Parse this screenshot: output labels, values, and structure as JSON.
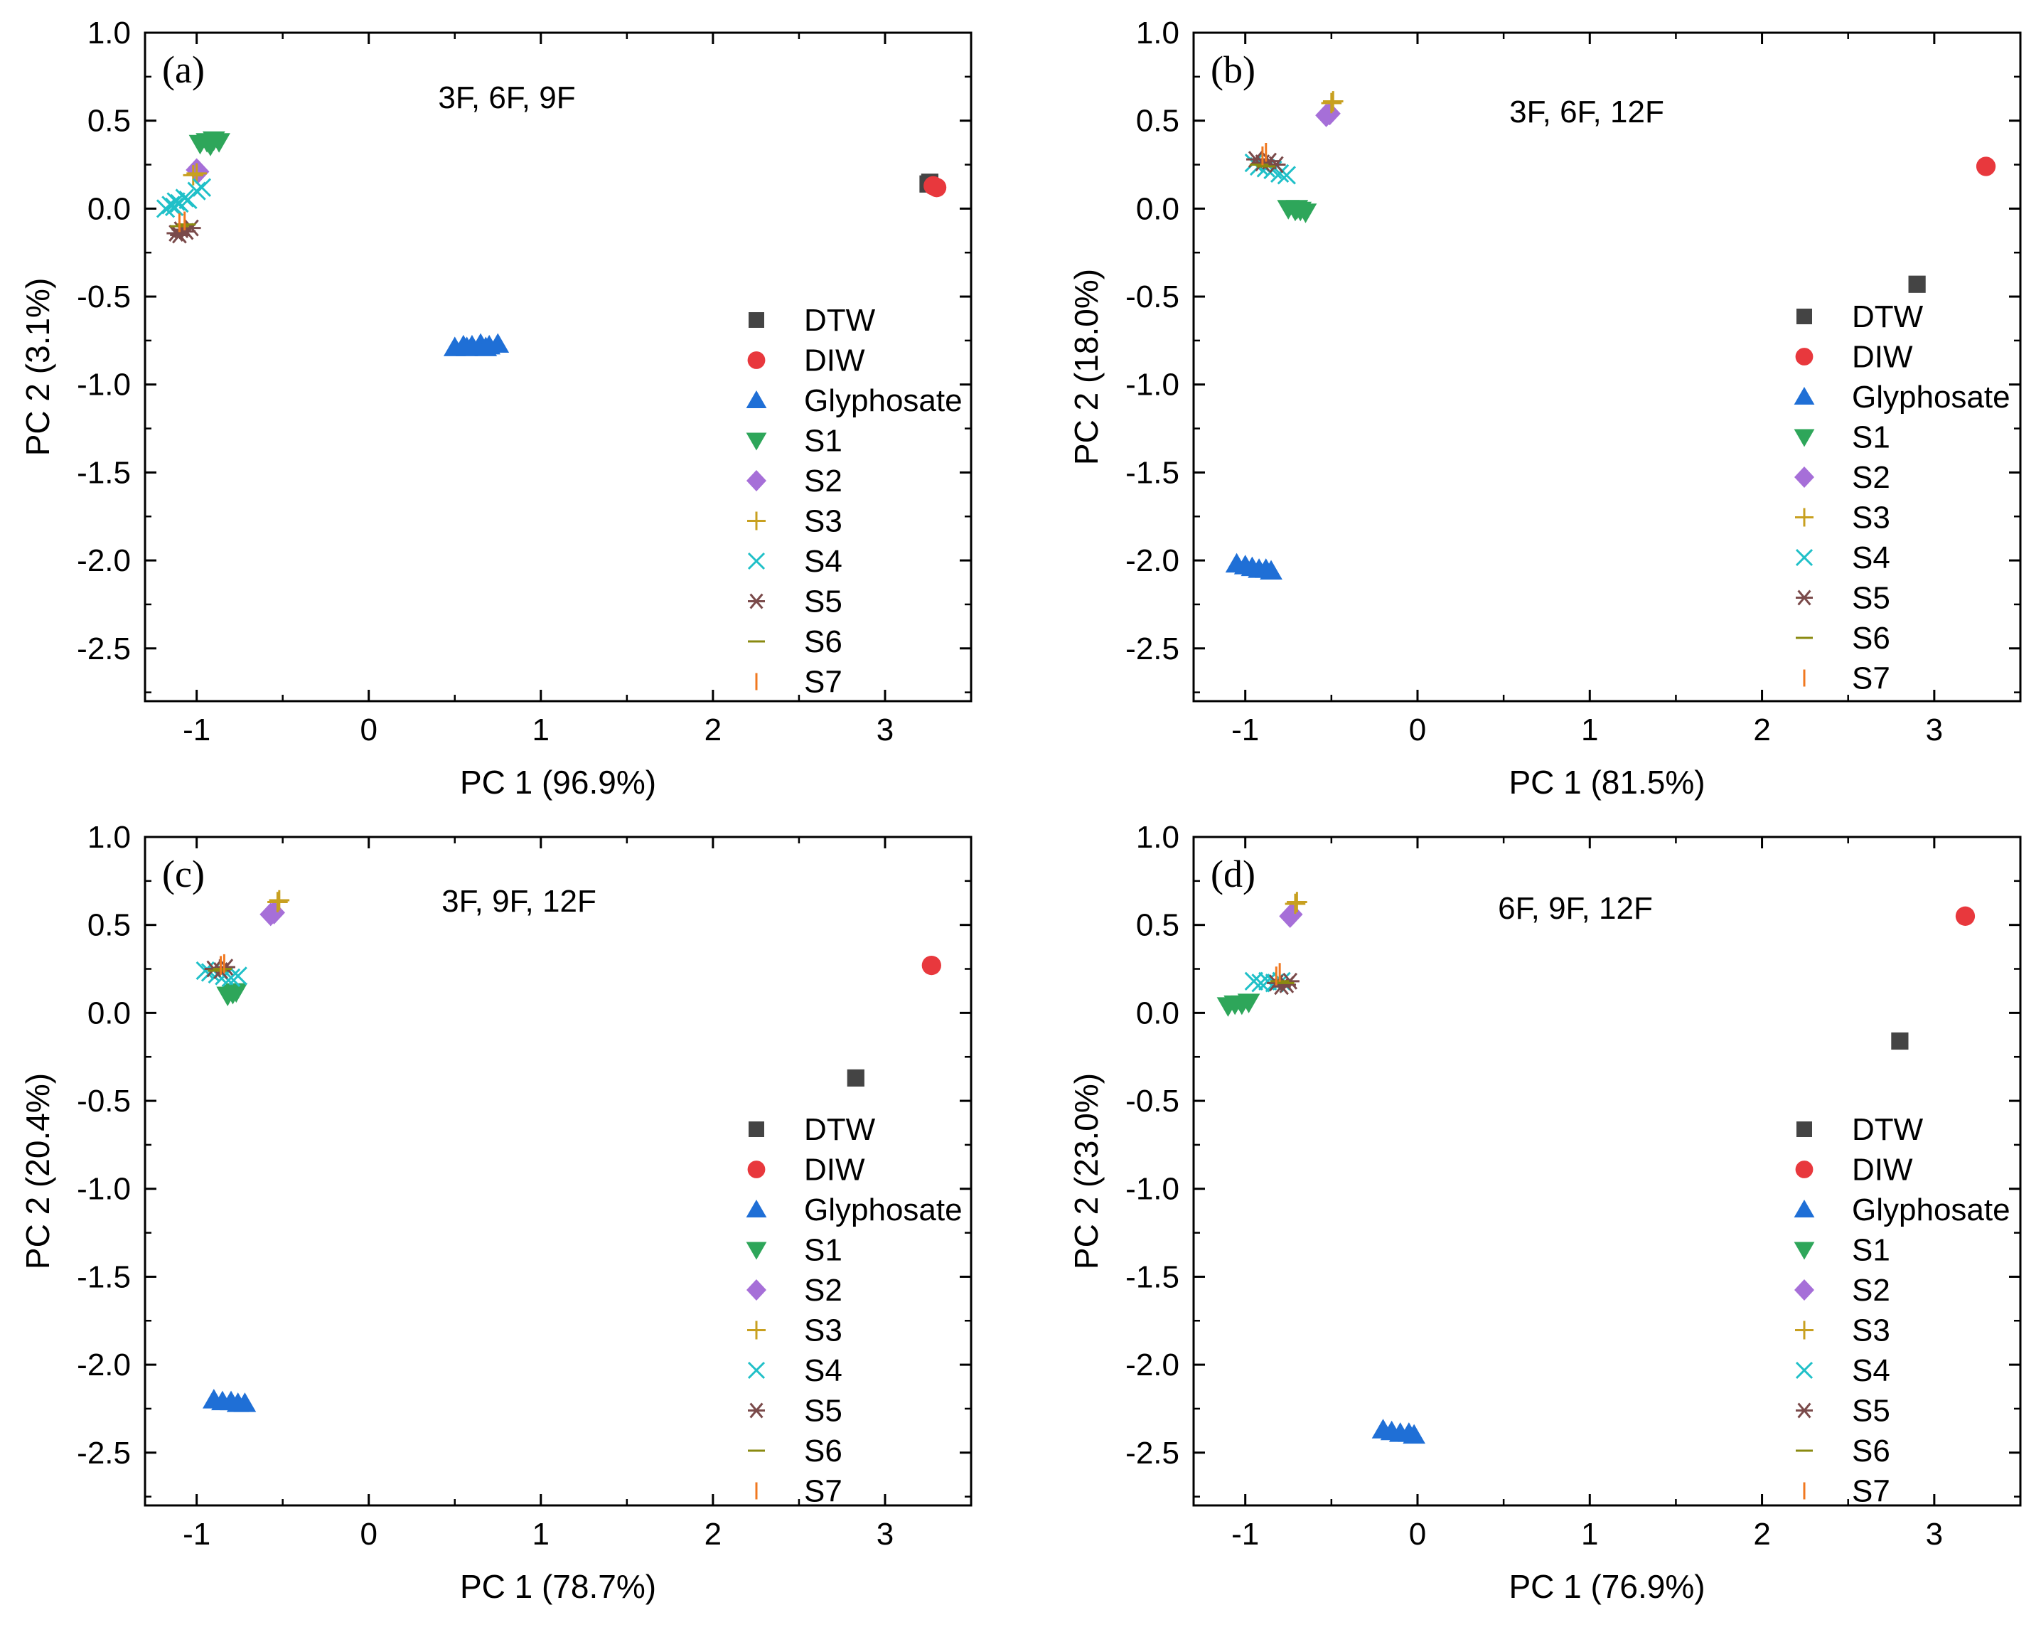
{
  "chart_data": [
    {
      "type": "scatter",
      "panel_label": "(a)",
      "annotation": "3F, 6F, 9F",
      "xlabel": "PC 1 (96.9%)",
      "ylabel": "PC 2 (3.1%)",
      "xlim": [
        -1.3,
        3.5
      ],
      "ylim": [
        -2.8,
        1.0
      ],
      "xticks": [
        -1,
        0,
        1,
        2,
        3
      ],
      "yticks": [
        1.0,
        0.5,
        0.0,
        -0.5,
        -1.0,
        -1.5,
        -2.0,
        -2.5
      ],
      "xtick_labels": [
        "-1",
        "0",
        "1",
        "2",
        "3"
      ],
      "ytick_labels": [
        "1.0",
        "0.5",
        "0.0",
        "-0.5",
        "-1.0",
        "-1.5",
        "-2.0",
        "-2.5"
      ],
      "legend_position": "lower-right",
      "series": [
        {
          "name": "DTW",
          "marker": "square",
          "color": "#444444",
          "points": [
            [
              3.25,
              0.14
            ],
            [
              3.26,
              0.15
            ]
          ]
        },
        {
          "name": "DIW",
          "marker": "circle",
          "color": "#e8383d",
          "points": [
            [
              3.28,
              0.13
            ],
            [
              3.3,
              0.12
            ]
          ]
        },
        {
          "name": "Glyphosate",
          "marker": "triangle-up",
          "color": "#1f6fd6",
          "points": [
            [
              0.5,
              -0.79
            ],
            [
              0.55,
              -0.78
            ],
            [
              0.6,
              -0.78
            ],
            [
              0.65,
              -0.77
            ],
            [
              0.7,
              -0.78
            ],
            [
              0.75,
              -0.77
            ],
            [
              0.57,
              -0.79
            ],
            [
              0.68,
              -0.79
            ]
          ]
        },
        {
          "name": "S1",
          "marker": "triangle-down",
          "color": "#2ea65a",
          "points": [
            [
              -0.98,
              0.37
            ],
            [
              -0.94,
              0.38
            ],
            [
              -0.9,
              0.39
            ],
            [
              -0.87,
              0.38
            ],
            [
              -0.92,
              0.36
            ]
          ]
        },
        {
          "name": "S2",
          "marker": "diamond",
          "color": "#a66fd8",
          "points": [
            [
              -1.0,
              0.22
            ],
            [
              -0.99,
              0.21
            ]
          ]
        },
        {
          "name": "S3",
          "marker": "plus",
          "color": "#c8a020",
          "points": [
            [
              -1.02,
              0.19
            ],
            [
              -1.0,
              0.2
            ]
          ]
        },
        {
          "name": "S4",
          "marker": "x",
          "color": "#20c0c8",
          "points": [
            [
              -1.18,
              0.0
            ],
            [
              -1.15,
              0.02
            ],
            [
              -1.12,
              0.04
            ],
            [
              -1.1,
              0.03
            ],
            [
              -1.07,
              0.06
            ],
            [
              -1.05,
              0.05
            ],
            [
              -1.0,
              0.1
            ],
            [
              -0.97,
              0.12
            ],
            [
              -1.13,
              0.01
            ]
          ]
        },
        {
          "name": "S5",
          "marker": "asterisk",
          "color": "#7a4a4a",
          "points": [
            [
              -1.12,
              -0.14
            ],
            [
              -1.09,
              -0.12
            ],
            [
              -1.06,
              -0.13
            ],
            [
              -1.03,
              -0.11
            ],
            [
              -1.1,
              -0.15
            ]
          ]
        },
        {
          "name": "S6",
          "marker": "dash",
          "color": "#8a8a10",
          "points": [
            [
              -1.1,
              -0.1
            ],
            [
              -1.06,
              -0.09
            ]
          ]
        },
        {
          "name": "S7",
          "marker": "bar",
          "color": "#f07820",
          "points": [
            [
              -1.1,
              -0.08
            ],
            [
              -1.07,
              -0.07
            ]
          ]
        }
      ]
    },
    {
      "type": "scatter",
      "panel_label": "(b)",
      "annotation": "3F, 6F, 12F",
      "xlabel": "PC 1 (81.5%)",
      "ylabel": "PC 2 (18.0%)",
      "xlim": [
        -1.3,
        3.5
      ],
      "ylim": [
        -2.8,
        1.0
      ],
      "xticks": [
        -1,
        0,
        1,
        2,
        3
      ],
      "yticks": [
        1.0,
        0.5,
        0.0,
        -0.5,
        -1.0,
        -1.5,
        -2.0,
        -2.5
      ],
      "xtick_labels": [
        "-1",
        "0",
        "1",
        "2",
        "3"
      ],
      "ytick_labels": [
        "1.0",
        "0.5",
        "0.0",
        "-0.5",
        "-1.0",
        "-1.5",
        "-2.0",
        "-2.5"
      ],
      "legend_position": "lower-right",
      "series": [
        {
          "name": "DTW",
          "marker": "square",
          "color": "#444444",
          "points": [
            [
              2.9,
              -0.43
            ]
          ]
        },
        {
          "name": "DIW",
          "marker": "circle",
          "color": "#e8383d",
          "points": [
            [
              3.3,
              0.24
            ]
          ]
        },
        {
          "name": "Glyphosate",
          "marker": "triangle-up",
          "color": "#1f6fd6",
          "points": [
            [
              -1.05,
              -2.02
            ],
            [
              -1.0,
              -2.03
            ],
            [
              -0.96,
              -2.04
            ],
            [
              -0.92,
              -2.05
            ],
            [
              -0.88,
              -2.05
            ],
            [
              -0.85,
              -2.06
            ]
          ]
        },
        {
          "name": "S1",
          "marker": "triangle-down",
          "color": "#2ea65a",
          "points": [
            [
              -0.75,
              0.0
            ],
            [
              -0.71,
              -0.01
            ],
            [
              -0.68,
              -0.01
            ],
            [
              -0.65,
              -0.02
            ],
            [
              -0.7,
              0.0
            ]
          ]
        },
        {
          "name": "S2",
          "marker": "diamond",
          "color": "#a66fd8",
          "points": [
            [
              -0.53,
              0.53
            ],
            [
              -0.51,
              0.54
            ]
          ]
        },
        {
          "name": "S3",
          "marker": "plus",
          "color": "#c8a020",
          "points": [
            [
              -0.5,
              0.6
            ],
            [
              -0.49,
              0.61
            ]
          ]
        },
        {
          "name": "S4",
          "marker": "x",
          "color": "#20c0c8",
          "points": [
            [
              -0.95,
              0.26
            ],
            [
              -0.92,
              0.24
            ],
            [
              -0.88,
              0.23
            ],
            [
              -0.84,
              0.22
            ],
            [
              -0.8,
              0.2
            ],
            [
              -0.76,
              0.19
            ]
          ]
        },
        {
          "name": "S5",
          "marker": "asterisk",
          "color": "#7a4a4a",
          "points": [
            [
              -0.94,
              0.28
            ],
            [
              -0.9,
              0.26
            ],
            [
              -0.86,
              0.27
            ],
            [
              -0.82,
              0.25
            ]
          ]
        },
        {
          "name": "S6",
          "marker": "dash",
          "color": "#8a8a10",
          "points": [
            [
              -0.92,
              0.25
            ],
            [
              -0.88,
              0.24
            ]
          ]
        },
        {
          "name": "S7",
          "marker": "bar",
          "color": "#f07820",
          "points": [
            [
              -0.9,
              0.3
            ],
            [
              -0.88,
              0.32
            ]
          ]
        }
      ]
    },
    {
      "type": "scatter",
      "panel_label": "(c)",
      "annotation": "3F, 9F, 12F",
      "xlabel": "PC 1 (78.7%)",
      "ylabel": "PC 2 (20.4%)",
      "xlim": [
        -1.3,
        3.5
      ],
      "ylim": [
        -2.8,
        1.0
      ],
      "xticks": [
        -1,
        0,
        1,
        2,
        3
      ],
      "yticks": [
        1.0,
        0.5,
        0.0,
        -0.5,
        -1.0,
        -1.5,
        -2.0,
        -2.5
      ],
      "xtick_labels": [
        "-1",
        "0",
        "1",
        "2",
        "3"
      ],
      "ytick_labels": [
        "1.0",
        "0.5",
        "0.0",
        "-0.5",
        "-1.0",
        "-1.5",
        "-2.0",
        "-2.5"
      ],
      "legend_position": "lower-right",
      "series": [
        {
          "name": "DTW",
          "marker": "square",
          "color": "#444444",
          "points": [
            [
              2.83,
              -0.37
            ]
          ]
        },
        {
          "name": "DIW",
          "marker": "circle",
          "color": "#e8383d",
          "points": [
            [
              3.27,
              0.27
            ]
          ]
        },
        {
          "name": "Glyphosate",
          "marker": "triangle-up",
          "color": "#1f6fd6",
          "points": [
            [
              -0.9,
              -2.2
            ],
            [
              -0.85,
              -2.21
            ],
            [
              -0.8,
              -2.21
            ],
            [
              -0.76,
              -2.22
            ],
            [
              -0.72,
              -2.22
            ]
          ]
        },
        {
          "name": "S1",
          "marker": "triangle-down",
          "color": "#2ea65a",
          "points": [
            [
              -0.82,
              0.1
            ],
            [
              -0.79,
              0.11
            ],
            [
              -0.77,
              0.12
            ]
          ]
        },
        {
          "name": "S2",
          "marker": "diamond",
          "color": "#a66fd8",
          "points": [
            [
              -0.57,
              0.56
            ],
            [
              -0.55,
              0.57
            ]
          ]
        },
        {
          "name": "S3",
          "marker": "plus",
          "color": "#c8a020",
          "points": [
            [
              -0.53,
              0.63
            ],
            [
              -0.52,
              0.64
            ]
          ]
        },
        {
          "name": "S4",
          "marker": "x",
          "color": "#20c0c8",
          "points": [
            [
              -0.95,
              0.24
            ],
            [
              -0.92,
              0.23
            ],
            [
              -0.88,
              0.22
            ],
            [
              -0.84,
              0.21
            ],
            [
              -0.8,
              0.2
            ],
            [
              -0.76,
              0.21
            ]
          ]
        },
        {
          "name": "S5",
          "marker": "asterisk",
          "color": "#7a4a4a",
          "points": [
            [
              -0.9,
              0.25
            ],
            [
              -0.86,
              0.24
            ],
            [
              -0.83,
              0.26
            ]
          ]
        },
        {
          "name": "S6",
          "marker": "dash",
          "color": "#8a8a10",
          "points": [
            [
              -0.88,
              0.24
            ],
            [
              -0.85,
              0.25
            ]
          ]
        },
        {
          "name": "S7",
          "marker": "bar",
          "color": "#f07820",
          "points": [
            [
              -0.86,
              0.27
            ],
            [
              -0.84,
              0.28
            ]
          ]
        }
      ]
    },
    {
      "type": "scatter",
      "panel_label": "(d)",
      "annotation": "6F, 9F, 12F",
      "xlabel": "PC 1 (76.9%)",
      "ylabel": "PC 2 (23.0%)",
      "xlim": [
        -1.3,
        3.5
      ],
      "ylim": [
        -2.8,
        1.0
      ],
      "xticks": [
        -1,
        0,
        1,
        2,
        3
      ],
      "yticks": [
        1.0,
        0.5,
        0.0,
        -0.5,
        -1.0,
        -1.5,
        -2.0,
        -2.5
      ],
      "xtick_labels": [
        "-1",
        "0",
        "1",
        "2",
        "3"
      ],
      "ytick_labels": [
        "1.0",
        "0.5",
        "0.0",
        "-0.5",
        "-1.0",
        "-1.5",
        "-2.0",
        "-2.5"
      ],
      "legend_position": "lower-right",
      "series": [
        {
          "name": "DTW",
          "marker": "square",
          "color": "#444444",
          "points": [
            [
              2.8,
              -0.16
            ]
          ]
        },
        {
          "name": "DIW",
          "marker": "circle",
          "color": "#e8383d",
          "points": [
            [
              3.18,
              0.55
            ]
          ]
        },
        {
          "name": "Glyphosate",
          "marker": "triangle-up",
          "color": "#1f6fd6",
          "points": [
            [
              -0.2,
              -2.37
            ],
            [
              -0.15,
              -2.38
            ],
            [
              -0.1,
              -2.39
            ],
            [
              -0.05,
              -2.39
            ],
            [
              -0.02,
              -2.4
            ]
          ]
        },
        {
          "name": "S1",
          "marker": "triangle-down",
          "color": "#2ea65a",
          "points": [
            [
              -1.1,
              0.04
            ],
            [
              -1.06,
              0.05
            ],
            [
              -1.02,
              0.05
            ],
            [
              -0.98,
              0.06
            ]
          ]
        },
        {
          "name": "S2",
          "marker": "diamond",
          "color": "#a66fd8",
          "points": [
            [
              -0.74,
              0.55
            ],
            [
              -0.73,
              0.56
            ]
          ]
        },
        {
          "name": "S3",
          "marker": "plus",
          "color": "#c8a020",
          "points": [
            [
              -0.71,
              0.62
            ],
            [
              -0.7,
              0.63
            ]
          ]
        },
        {
          "name": "S4",
          "marker": "x",
          "color": "#20c0c8",
          "points": [
            [
              -0.95,
              0.18
            ],
            [
              -0.91,
              0.17
            ],
            [
              -0.87,
              0.18
            ],
            [
              -0.83,
              0.17
            ],
            [
              -0.79,
              0.18
            ]
          ]
        },
        {
          "name": "S5",
          "marker": "asterisk",
          "color": "#7a4a4a",
          "points": [
            [
              -0.82,
              0.17
            ],
            [
              -0.79,
              0.15
            ],
            [
              -0.76,
              0.16
            ],
            [
              -0.74,
              0.18
            ]
          ]
        },
        {
          "name": "S6",
          "marker": "dash",
          "color": "#8a8a10",
          "points": [
            [
              -0.8,
              0.18
            ],
            [
              -0.77,
              0.17
            ]
          ]
        },
        {
          "name": "S7",
          "marker": "bar",
          "color": "#f07820",
          "points": [
            [
              -0.82,
              0.21
            ],
            [
              -0.8,
              0.23
            ]
          ]
        }
      ]
    }
  ]
}
